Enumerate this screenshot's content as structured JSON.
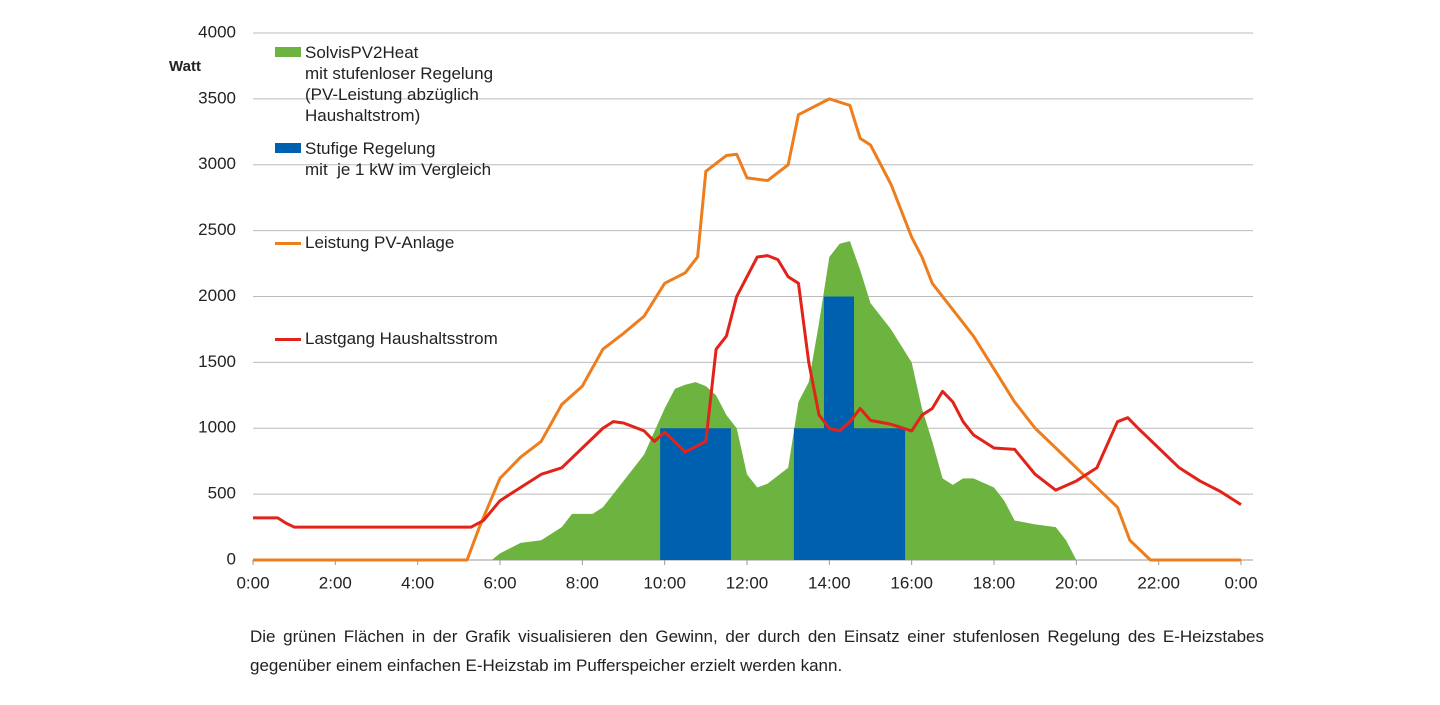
{
  "chart_data": {
    "type": "combo",
    "y_label": "Watt",
    "xlim": [
      0,
      24
    ],
    "ylim": [
      0,
      4000
    ],
    "xticks": [
      {
        "value": 0,
        "label": "0:00"
      },
      {
        "value": 2,
        "label": "2:00"
      },
      {
        "value": 4,
        "label": "4:00"
      },
      {
        "value": 6,
        "label": "6:00"
      },
      {
        "value": 8,
        "label": "8:00"
      },
      {
        "value": 10,
        "label": "10:00"
      },
      {
        "value": 12,
        "label": "12:00"
      },
      {
        "value": 14,
        "label": "14:00"
      },
      {
        "value": 16,
        "label": "16:00"
      },
      {
        "value": 18,
        "label": "18:00"
      },
      {
        "value": 20,
        "label": "20:00"
      },
      {
        "value": 22,
        "label": "22:00"
      },
      {
        "value": 24,
        "label": "0:00"
      }
    ],
    "yticks": [
      0,
      500,
      1000,
      1500,
      2000,
      2500,
      3000,
      3500,
      4000
    ],
    "grid": true,
    "series": [
      {
        "name": "SolvisPV2Heat\nmit stufenloser Regelung\n(PV-Leistung abzüglich\nHaushaltstrom)",
        "type": "area",
        "color": "#6cb33f",
        "x": [
          5.8,
          6.0,
          6.5,
          7.0,
          7.5,
          7.75,
          8.0,
          8.25,
          8.5,
          9.0,
          9.5,
          10.0,
          10.25,
          10.5,
          10.75,
          11.0,
          11.25,
          11.5,
          11.75,
          12.0,
          12.25,
          12.5,
          13.0,
          13.25,
          13.5,
          13.75,
          14.0,
          14.25,
          14.5,
          14.75,
          15.0,
          15.5,
          16.0,
          16.25,
          16.5,
          16.75,
          17.0,
          17.25,
          17.5,
          18.0,
          18.25,
          18.5,
          19.0,
          19.5,
          19.75,
          20.0
        ],
        "values": [
          0,
          50,
          130,
          150,
          250,
          350,
          350,
          350,
          400,
          600,
          800,
          1150,
          1300,
          1330,
          1350,
          1320,
          1250,
          1100,
          1000,
          650,
          550,
          580,
          700,
          1200,
          1350,
          1800,
          2300,
          2400,
          2420,
          2200,
          1950,
          1750,
          1500,
          1150,
          900,
          620,
          570,
          620,
          620,
          550,
          450,
          300,
          270,
          250,
          150,
          0
        ]
      },
      {
        "name": "Stufige Regelung\nmit  je 1 kW im Vergleich",
        "type": "step",
        "color": "#0060b0",
        "x": [
          9.89,
          11.61,
          13.14,
          13.87,
          14.6,
          15.84
        ],
        "values": [
          1000,
          0,
          1000,
          2000,
          1000,
          0
        ]
      },
      {
        "name": "Leistung PV-Anlage",
        "type": "line",
        "color": "#ee7d1e",
        "x": [
          0,
          5.2,
          5.5,
          6.0,
          6.5,
          7.0,
          7.5,
          8.0,
          8.5,
          9.0,
          9.5,
          10.0,
          10.5,
          10.8,
          11.0,
          11.5,
          11.75,
          12.0,
          12.5,
          13.0,
          13.25,
          13.5,
          14.0,
          14.5,
          14.75,
          15.0,
          15.5,
          16.0,
          16.25,
          16.5,
          17.0,
          17.5,
          18.0,
          18.5,
          19.0,
          19.5,
          20.0,
          20.5,
          21.0,
          21.3,
          21.8,
          24
        ],
        "values": [
          0,
          0,
          250,
          620,
          780,
          900,
          1180,
          1320,
          1600,
          1720,
          1850,
          2100,
          2180,
          2300,
          2950,
          3070,
          3080,
          2900,
          2880,
          3000,
          3380,
          3420,
          3500,
          3450,
          3200,
          3150,
          2850,
          2450,
          2300,
          2100,
          1900,
          1700,
          1450,
          1200,
          1000,
          850,
          700,
          550,
          400,
          150,
          0,
          0
        ]
      },
      {
        "name": "Lastgang Haushaltsstrom",
        "type": "line",
        "color": "#e2231a",
        "x": [
          0,
          0.6,
          0.8,
          1.0,
          5.3,
          5.6,
          6.0,
          6.5,
          7.0,
          7.5,
          8.0,
          8.5,
          8.75,
          9.0,
          9.5,
          9.75,
          10.0,
          10.5,
          11.0,
          11.25,
          11.5,
          11.75,
          12.0,
          12.25,
          12.5,
          12.75,
          13.0,
          13.25,
          13.5,
          13.75,
          14.0,
          14.25,
          14.5,
          14.75,
          15.0,
          15.5,
          16.0,
          16.25,
          16.5,
          16.75,
          17.0,
          17.25,
          17.5,
          18.0,
          18.5,
          19.0,
          19.5,
          20.0,
          20.5,
          21.0,
          21.25,
          21.5,
          22.0,
          22.5,
          23.0,
          23.5,
          24
        ],
        "values": [
          320,
          320,
          280,
          250,
          250,
          300,
          450,
          550,
          650,
          700,
          850,
          1000,
          1050,
          1040,
          980,
          900,
          970,
          820,
          900,
          1600,
          1700,
          2000,
          2150,
          2300,
          2310,
          2280,
          2150,
          2100,
          1500,
          1100,
          1000,
          980,
          1050,
          1150,
          1060,
          1030,
          980,
          1100,
          1150,
          1280,
          1200,
          1050,
          950,
          850,
          840,
          650,
          530,
          600,
          700,
          1050,
          1080,
          1000,
          850,
          700,
          600,
          520,
          420
        ]
      }
    ]
  },
  "caption": "Die grünen Flächen in der Grafik visualisieren den Gewinn, der durch den Einsatz einer stufenlosen Regelung des E-Heizstabes gegenüber einem einfachen E-Heizstab im Pufferspeicher erzielt werden kann."
}
